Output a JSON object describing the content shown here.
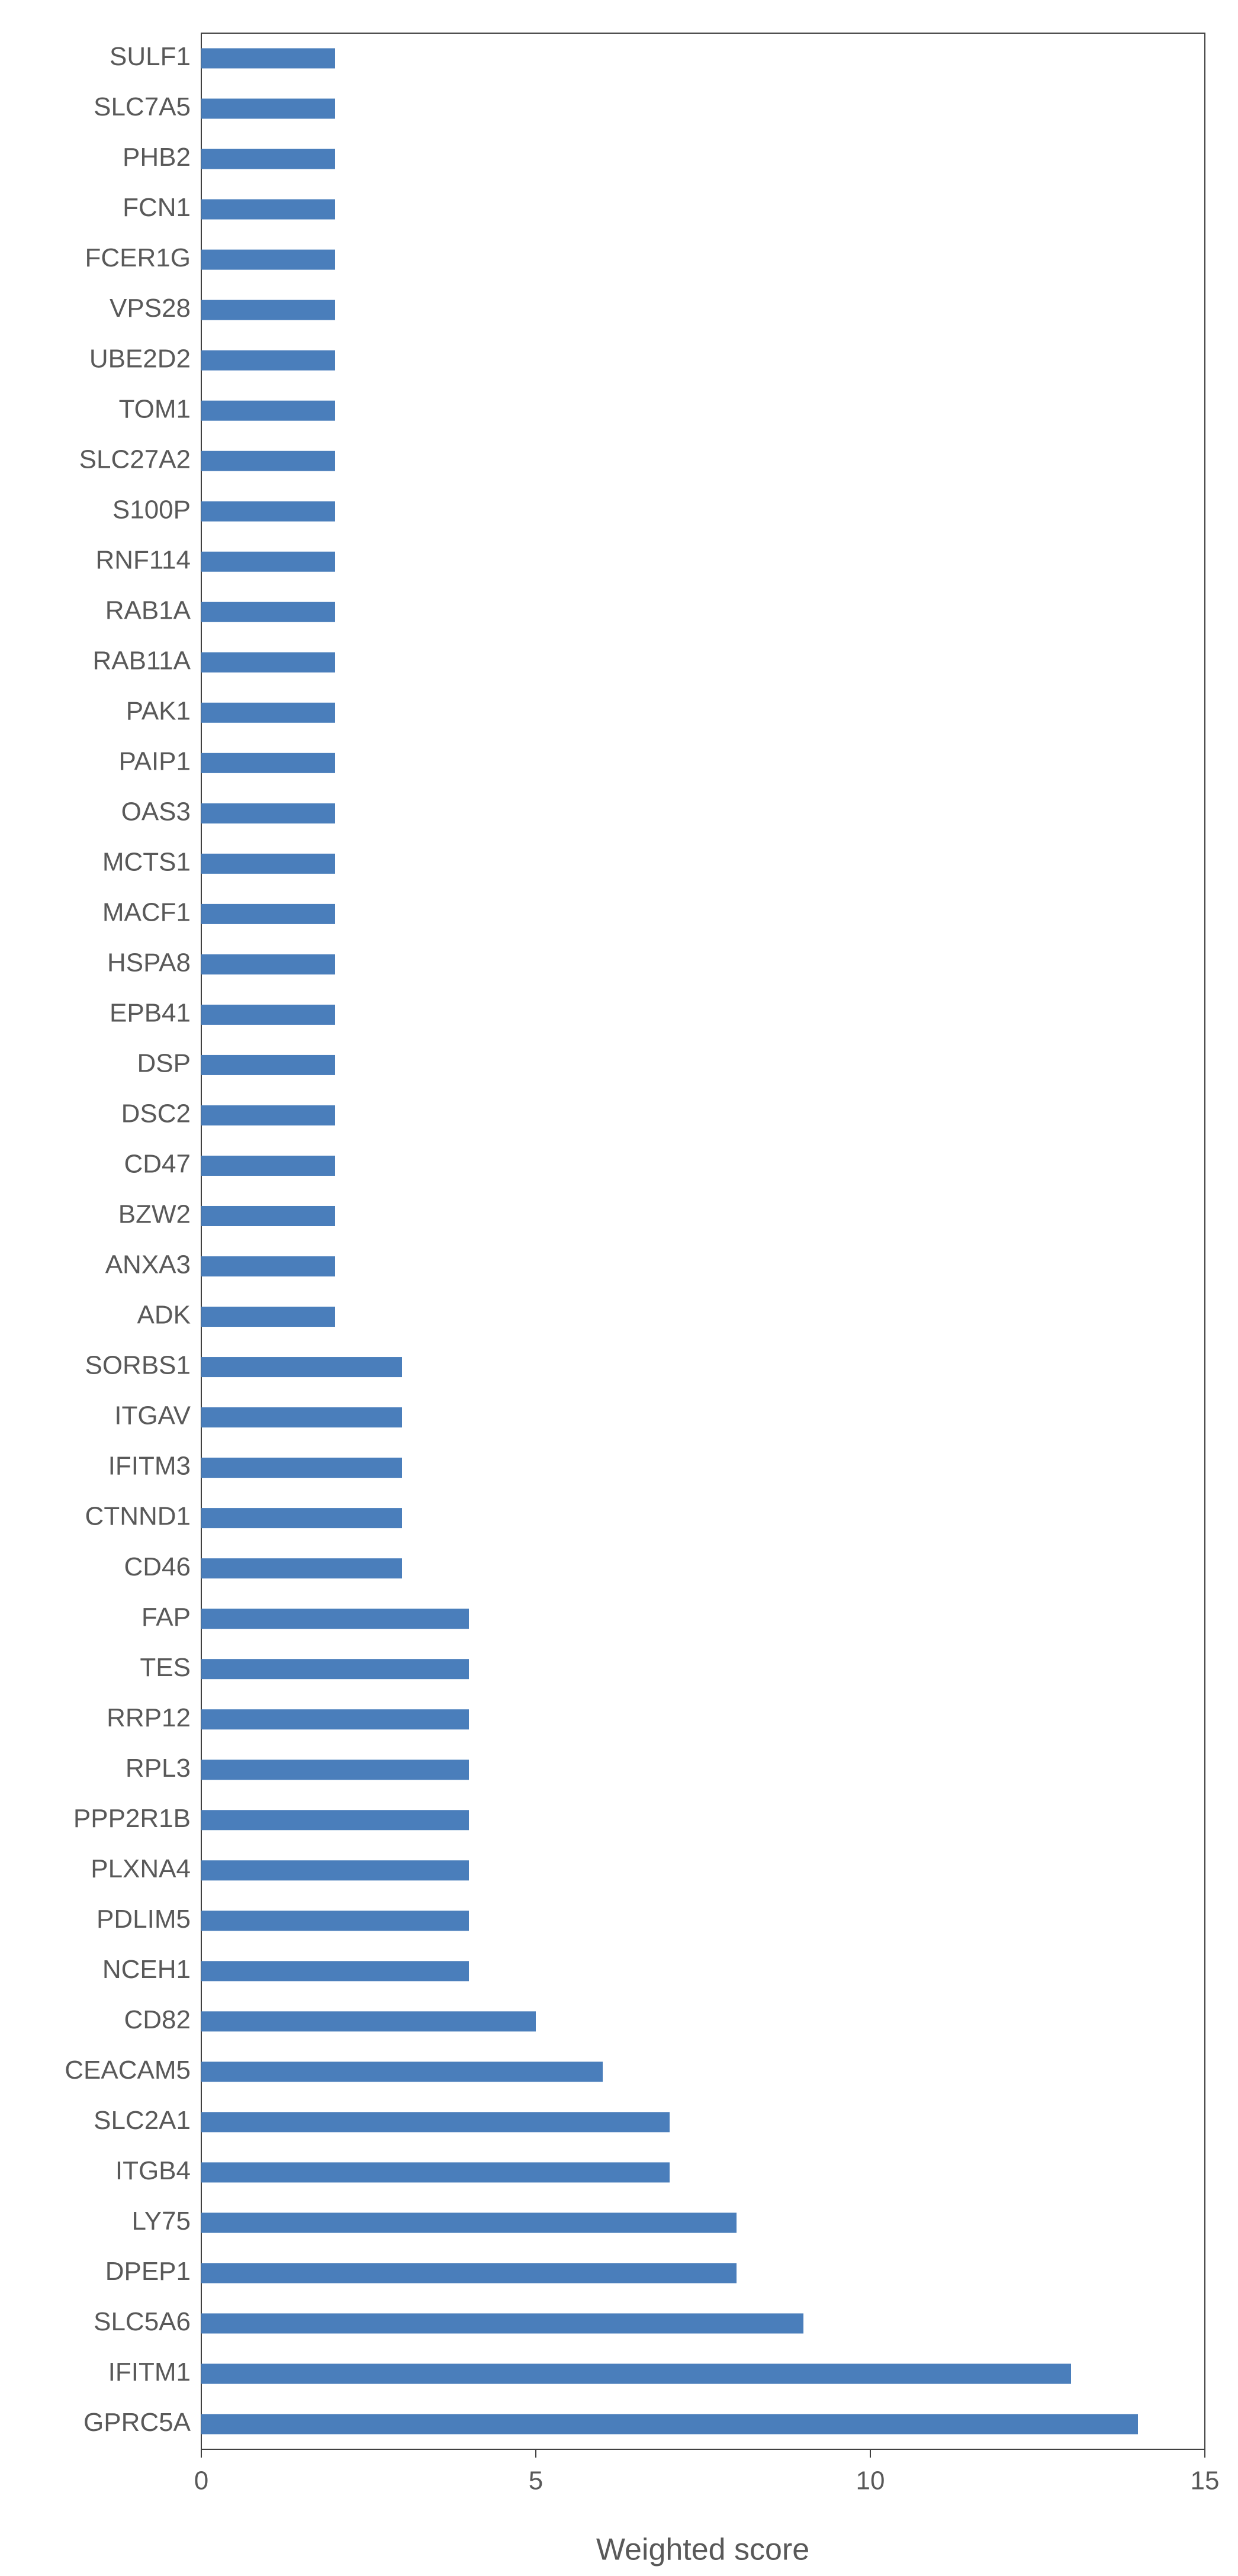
{
  "chart_data": {
    "type": "barh",
    "x_label": "Weighted score",
    "categories": [
      "SULF1",
      "SLC7A5",
      "PHB2",
      "FCN1",
      "FCER1G",
      "VPS28",
      "UBE2D2",
      "TOM1",
      "SLC27A2",
      "S100P",
      "RNF114",
      "RAB1A",
      "RAB11A",
      "PAK1",
      "PAIP1",
      "OAS3",
      "MCTS1",
      "MACF1",
      "HSPA8",
      "EPB41",
      "DSP",
      "DSC2",
      "CD47",
      "BZW2",
      "ANXA3",
      "ADK",
      "SORBS1",
      "ITGAV",
      "IFITM3",
      "CTNND1",
      "CD46",
      "FAP",
      "TES",
      "RRP12",
      "RPL3",
      "PPP2R1B",
      "PLXNA4",
      "PDLIM5",
      "NCEH1",
      "CD82",
      "CEACAM5",
      "SLC2A1",
      "ITGB4",
      "LY75",
      "DPEP1",
      "SLC5A6",
      "IFITM1",
      "GPRC5A"
    ],
    "values": [
      2,
      2,
      2,
      2,
      2,
      2,
      2,
      2,
      2,
      2,
      2,
      2,
      2,
      2,
      2,
      2,
      2,
      2,
      2,
      2,
      2,
      2,
      2,
      2,
      2,
      2,
      3,
      3,
      3,
      3,
      3,
      4,
      4,
      4,
      4,
      4,
      4,
      4,
      4,
      5,
      6,
      7,
      7,
      8,
      8,
      9,
      13,
      14
    ],
    "color": "#4a7ebb",
    "xlim": [
      0,
      15
    ],
    "xticks": [
      0,
      5,
      10,
      15
    ]
  }
}
